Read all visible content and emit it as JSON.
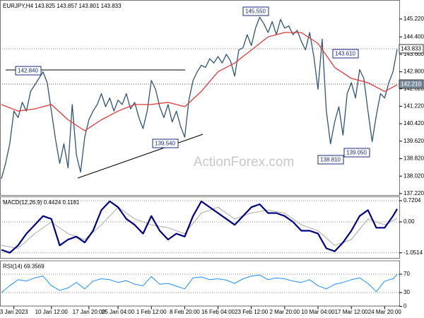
{
  "chart_data": [
    {
      "type": "line",
      "title": "EURJPY,H4  143.825 143.857 143.801 143.833",
      "watermark": "ActionForex.com",
      "xlim": [
        0,
        95
      ],
      "ylim": [
        137.12,
        146.09
      ],
      "yticks": [
        {
          "value": 145.22,
          "label": "145.220"
        },
        {
          "value": 144.4,
          "label": "144.400"
        },
        {
          "value": 143.6,
          "label": "143.600"
        },
        {
          "value": 142.8,
          "label": "142.800"
        },
        {
          "value": 142.02,
          "label": "142.020"
        },
        {
          "value": 141.22,
          "label": "141.220"
        },
        {
          "value": 140.42,
          "label": "140.420"
        },
        {
          "value": 139.62,
          "label": "139.620"
        },
        {
          "value": 138.82,
          "label": "138.820"
        },
        {
          "value": 138.02,
          "label": "138.020"
        },
        {
          "value": 137.22,
          "label": "137.220"
        }
      ],
      "grid": false,
      "annotations": [
        "142.840",
        "139.540",
        "145.550",
        "143.610",
        "138.810",
        "139.050"
      ],
      "price_labels": [
        "143.833",
        "142.210"
      ],
      "series": [
        {
          "color": "#2f5575",
          "values": [
            137.9,
            138.6,
            139.5,
            141.0,
            140.7,
            141.4,
            141.0,
            141.9,
            142.2,
            142.5,
            142.8,
            142.3,
            141.0,
            139.7,
            138.6,
            139.5,
            138.4,
            141.3,
            139.0,
            138.2,
            139.8,
            140.6,
            141.0,
            141.3,
            141.8,
            141.2,
            141.6,
            141.0,
            141.5,
            141.3,
            141.8,
            141.1,
            141.4,
            140.7,
            140.2,
            141.0,
            142.4,
            142.0,
            141.2,
            140.7,
            141.3,
            140.5,
            141.0,
            140.3,
            139.8,
            141.5,
            142.4,
            142.8,
            143.1,
            143.0,
            143.4,
            143.2,
            143.5,
            143.2,
            143.6,
            143.3,
            142.6,
            143.8,
            143.9,
            144.5,
            144.0,
            144.8,
            145.3,
            145.0,
            144.6,
            145.1,
            144.5,
            145.2,
            144.8,
            144.9,
            144.5,
            144.7,
            144.2,
            143.8,
            144.6,
            143.5,
            142.0,
            144.3,
            141.0,
            139.5,
            140.5,
            141.2,
            139.9,
            141.8,
            142.3,
            141.6,
            142.9,
            142.5,
            141.0,
            139.6,
            140.8,
            141.8,
            141.6,
            142.3,
            142.8,
            143.83
          ]
        },
        {
          "color": "#e03a3a",
          "x": [
            0,
            4,
            8,
            12,
            16,
            20,
            24,
            28,
            32,
            36,
            40,
            44,
            48,
            52,
            56,
            60,
            64,
            68,
            72,
            76,
            80,
            84,
            88,
            92,
            95
          ],
          "values": [
            141.3,
            141.0,
            141.1,
            141.3,
            140.6,
            140.1,
            140.6,
            141.0,
            141.3,
            141.3,
            141.4,
            141.2,
            141.9,
            142.8,
            143.2,
            143.8,
            144.4,
            144.6,
            144.6,
            144.1,
            143.0,
            142.5,
            142.3,
            141.9,
            142.2
          ]
        }
      ]
    },
    {
      "type": "line",
      "title": "MACD(12,26,9) 0.4424 0.1181",
      "xlim": [
        0,
        95
      ],
      "ylim": [
        -1.25,
        0.865
      ],
      "yticks": [
        0.7204,
        {
          "value": 0,
          "label": "0.00"
        },
        -1.0514
      ],
      "grid": true,
      "series": [
        {
          "color": "#a8a8a8",
          "width": 1,
          "x": [
            0,
            4,
            8,
            12,
            16,
            20,
            24,
            28,
            32,
            36,
            40,
            44,
            48,
            52,
            56,
            60,
            64,
            68,
            72,
            76,
            80,
            84,
            88,
            92,
            95
          ],
          "values": [
            -0.8,
            -0.9,
            -0.4,
            0.0,
            -0.4,
            -0.6,
            -0.1,
            0.5,
            0.1,
            -0.1,
            -0.2,
            -0.4,
            0.3,
            0.5,
            0.1,
            0.3,
            0.4,
            0.3,
            -0.1,
            -0.3,
            -0.8,
            -0.6,
            0.1,
            -0.1,
            0.12
          ]
        },
        {
          "color": "#000080",
          "width": 2.2,
          "x": [
            0,
            2,
            4,
            6,
            8,
            10,
            12,
            14,
            16,
            18,
            20,
            22,
            24,
            26,
            28,
            30,
            32,
            34,
            36,
            38,
            40,
            42,
            44,
            46,
            48,
            50,
            52,
            54,
            56,
            58,
            60,
            62,
            64,
            66,
            68,
            70,
            72,
            74,
            76,
            78,
            80,
            82,
            84,
            86,
            88,
            90,
            92,
            94,
            95
          ],
          "values": [
            -0.95,
            -1.05,
            -0.8,
            -0.4,
            -0.1,
            0.2,
            0.1,
            -0.8,
            -0.6,
            -0.5,
            -0.7,
            -0.3,
            0.4,
            0.7,
            0.5,
            0.1,
            -0.1,
            -0.4,
            0.2,
            -0.3,
            -0.6,
            -0.4,
            -0.5,
            0.2,
            0.7,
            0.5,
            0.3,
            0.1,
            -0.1,
            0.2,
            0.5,
            0.6,
            0.3,
            0.3,
            0.2,
            0.0,
            -0.3,
            -0.3,
            -0.4,
            -0.9,
            -1.0,
            -0.7,
            -0.3,
            0.2,
            0.4,
            -0.2,
            -0.2,
            0.2,
            0.44
          ]
        }
      ]
    },
    {
      "type": "line",
      "title": "RSI(14) 69.3569",
      "xlim": [
        0,
        95
      ],
      "ylim": [
        0,
        100
      ],
      "yticks": [
        0,
        30,
        70
      ],
      "grid": true,
      "xticks": [
        {
          "value": 3,
          "label": "3 Jan 2023"
        },
        {
          "value": 12,
          "label": "10 Jan 12:00"
        },
        {
          "value": 21,
          "label": "17 Jan 20:00"
        },
        {
          "value": 28,
          "label": "25 Jan 04:00"
        },
        {
          "value": 36,
          "label": "1 Feb 12:00"
        },
        {
          "value": 44,
          "label": "8 Feb 20:00"
        },
        {
          "value": 52,
          "label": "16 Feb 04:00"
        },
        {
          "value": 60,
          "label": "23 Feb 12:00"
        },
        {
          "value": 68,
          "label": "2 Mar 20:00"
        },
        {
          "value": 76,
          "label": "10 Mar 04:00"
        },
        {
          "value": 84,
          "label": "17 Mar 12:00"
        },
        {
          "value": 92,
          "label": "24 Mar 20:00"
        }
      ],
      "series": [
        {
          "color": "#1e90ff",
          "width": 1,
          "x": [
            0,
            2,
            4,
            6,
            8,
            10,
            12,
            14,
            16,
            18,
            20,
            22,
            24,
            26,
            28,
            30,
            32,
            34,
            36,
            38,
            40,
            42,
            44,
            46,
            48,
            50,
            52,
            54,
            56,
            58,
            60,
            62,
            64,
            66,
            68,
            70,
            72,
            74,
            76,
            78,
            80,
            82,
            84,
            86,
            88,
            90,
            92,
            94,
            95
          ],
          "values": [
            30,
            45,
            58,
            55,
            62,
            66,
            45,
            35,
            40,
            52,
            38,
            55,
            60,
            58,
            52,
            56,
            48,
            45,
            65,
            48,
            50,
            44,
            38,
            62,
            64,
            58,
            60,
            57,
            50,
            60,
            66,
            68,
            58,
            62,
            60,
            55,
            52,
            58,
            45,
            38,
            48,
            52,
            58,
            62,
            50,
            32,
            55,
            60,
            69.36
          ]
        }
      ]
    }
  ]
}
